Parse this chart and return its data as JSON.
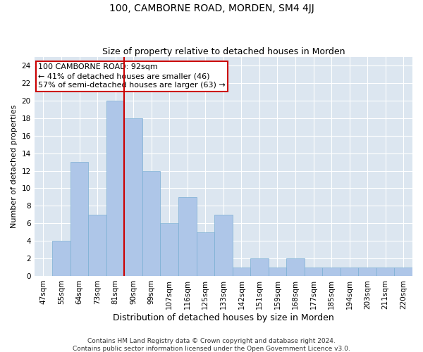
{
  "title1": "100, CAMBORNE ROAD, MORDEN, SM4 4JJ",
  "title2": "Size of property relative to detached houses in Morden",
  "xlabel": "Distribution of detached houses by size in Morden",
  "ylabel": "Number of detached properties",
  "categories": [
    "47sqm",
    "55sqm",
    "64sqm",
    "73sqm",
    "81sqm",
    "90sqm",
    "99sqm",
    "107sqm",
    "116sqm",
    "125sqm",
    "133sqm",
    "142sqm",
    "151sqm",
    "159sqm",
    "168sqm",
    "177sqm",
    "185sqm",
    "194sqm",
    "203sqm",
    "211sqm",
    "220sqm"
  ],
  "values": [
    0,
    4,
    13,
    7,
    20,
    18,
    12,
    6,
    9,
    5,
    7,
    1,
    2,
    1,
    2,
    1,
    1,
    1,
    1,
    1,
    1
  ],
  "bar_color": "#aec6e8",
  "bar_edge_color": "#7bafd4",
  "vline_x": 4.5,
  "vline_color": "#cc0000",
  "annotation_box_color": "#cc0000",
  "annotation_text": "100 CAMBORNE ROAD: 92sqm\n← 41% of detached houses are smaller (46)\n57% of semi-detached houses are larger (63) →",
  "ylim": [
    0,
    25
  ],
  "yticks": [
    0,
    2,
    4,
    6,
    8,
    10,
    12,
    14,
    16,
    18,
    20,
    22,
    24
  ],
  "background_color": "#dce6f0",
  "footer": "Contains HM Land Registry data © Crown copyright and database right 2024.\nContains public sector information licensed under the Open Government Licence v3.0.",
  "title1_fontsize": 10,
  "title2_fontsize": 9,
  "xlabel_fontsize": 9,
  "ylabel_fontsize": 8,
  "tick_fontsize": 7.5,
  "annotation_fontsize": 8,
  "footer_fontsize": 6.5
}
